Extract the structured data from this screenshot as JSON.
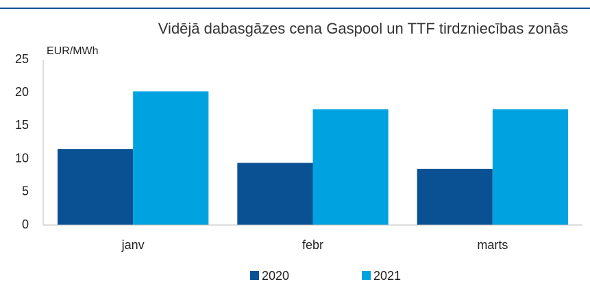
{
  "chart_data": {
    "type": "bar",
    "title": "Vidējā dabasgāzes cena Gaspool un TTF tirdzniecības zonās",
    "y_label": "EUR/MWh",
    "categories": [
      "janv",
      "febr",
      "marts"
    ],
    "series": [
      {
        "name": "2020",
        "color": "#0a5194",
        "values": [
          11.5,
          9.4,
          8.5
        ]
      },
      {
        "name": "2021",
        "color": "#00a3e0",
        "values": [
          20.2,
          17.5,
          17.5
        ]
      }
    ],
    "ylim": [
      0,
      25
    ],
    "yticks": [
      0,
      5,
      10,
      15,
      20,
      25
    ],
    "grid": false,
    "legend": "bottom"
  }
}
